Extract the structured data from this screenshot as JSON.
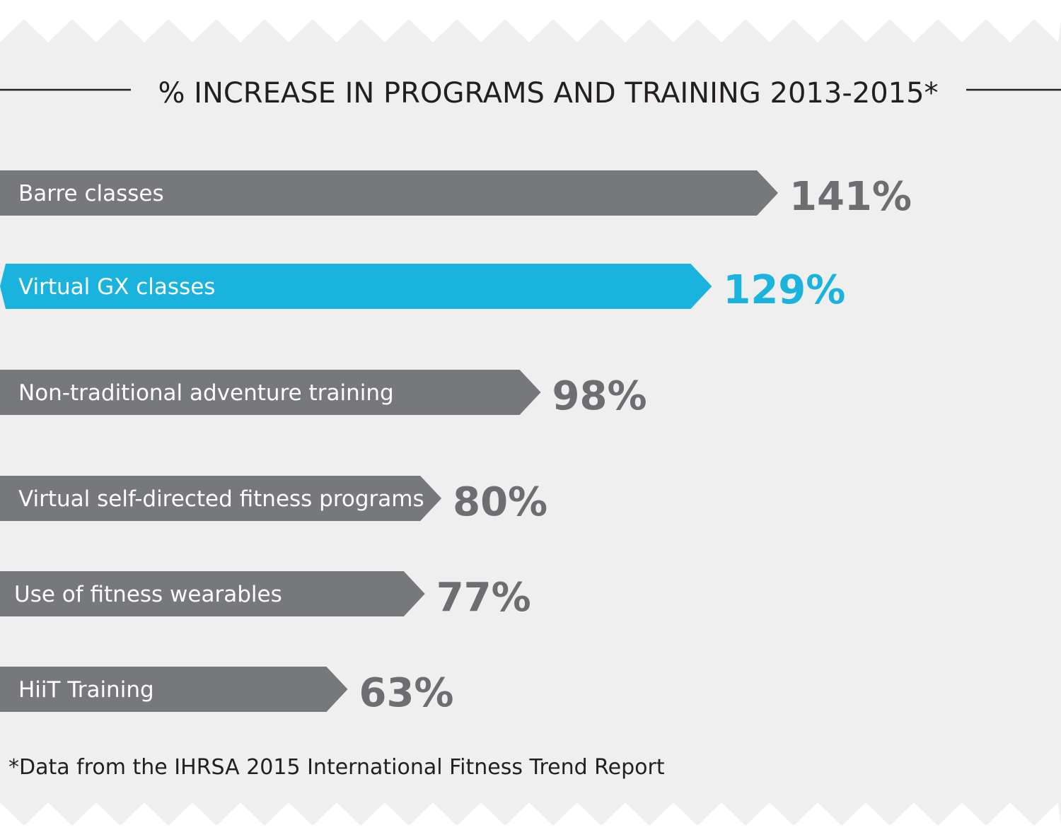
{
  "chart_data": {
    "type": "bar",
    "orientation": "horizontal",
    "title": "% INCREASE IN PROGRAMS AND TRAINING 2013-2015*",
    "categories": [
      "Barre classes",
      "Virtual GX classes",
      "Non-traditional adventure training",
      "Virtual self-directed fitness programs",
      "Use of fitness wearables",
      "HiiT Training"
    ],
    "values": [
      141,
      129,
      98,
      80,
      77,
      63
    ],
    "value_labels": [
      "141%",
      "129%",
      "98%",
      "80%",
      "77%",
      "63%"
    ],
    "highlight_index": 1,
    "xlim": [
      0,
      141
    ],
    "grid": false,
    "legend": "none",
    "footnote": "*Data from the IHRSA 2015 International Fitness Trend Report"
  },
  "colors": {
    "background": "#efefef",
    "page": "#ffffff",
    "bar": "#77787b",
    "bar_highlight": "#1ab3dd",
    "value_text": "#6d6e71",
    "value_text_highlight": "#1ab3dd",
    "title_text": "#231f20",
    "title_rule": "#231f20"
  }
}
